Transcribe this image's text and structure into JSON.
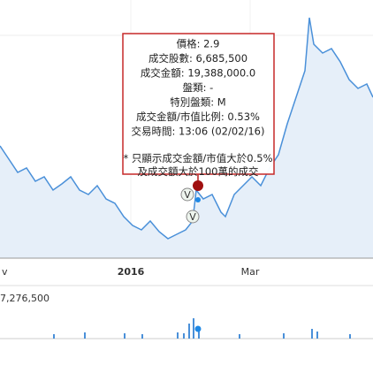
{
  "tooltip": {
    "lines": [
      "價格: 2.9",
      "成交股數: 6,685,500",
      "成交金額: 19,388,000.0",
      "盤類: -",
      "特別盤類: M",
      "成交金額/市值比例: 0.53%",
      "交易時間: 13:06 (02/02/16)"
    ],
    "notes": [
      "* 只顯示成交金額/市值大於0.5%",
      "及成交額大於100萬的成交"
    ]
  },
  "x_axis": {
    "labels": [
      "v",
      "2016",
      "Mar"
    ]
  },
  "volume": {
    "label": "7,276,500"
  },
  "flags": [
    "V",
    "V"
  ]
}
